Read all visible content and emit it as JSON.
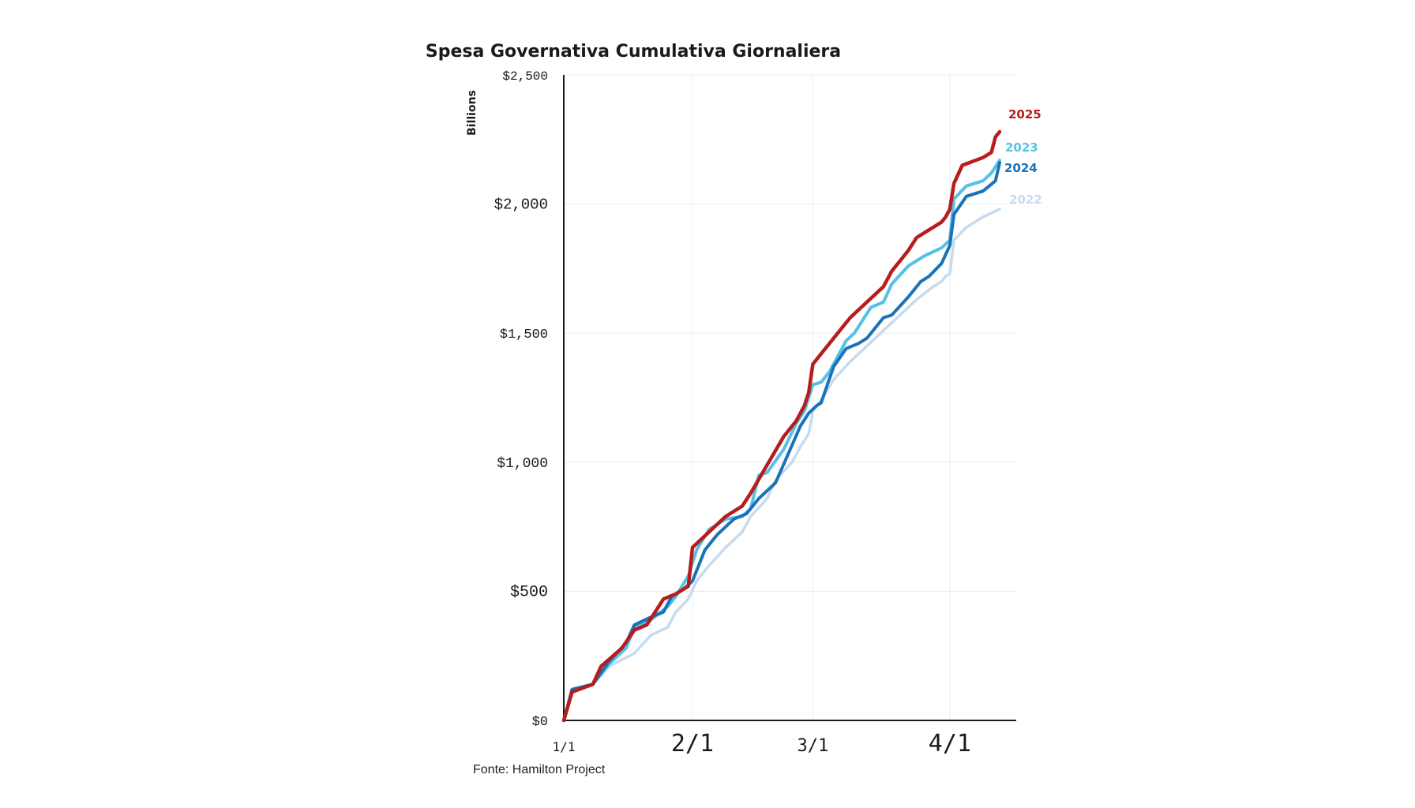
{
  "chart_data": {
    "type": "line",
    "title": "Spesa Governativa Cumulativa Giornaliera",
    "ylabel": "Billions",
    "xlabel": "",
    "source": "Fonte: Hamilton Project",
    "ylim": [
      0,
      2500
    ],
    "xlim": [
      1,
      110
    ],
    "grid": true,
    "legend": "right (end-of-line labels)",
    "yticks": [
      {
        "value": 0,
        "label": "$0"
      },
      {
        "value": 500,
        "label": "$500"
      },
      {
        "value": 1000,
        "label": "$1,000"
      },
      {
        "value": 1500,
        "label": "$1,500"
      },
      {
        "value": 2000,
        "label": "$2,000"
      },
      {
        "value": 2500,
        "label": "$2,500"
      }
    ],
    "xticks": [
      {
        "day": 1,
        "label": "1/1"
      },
      {
        "day": 32,
        "label": "2/1"
      },
      {
        "day": 61,
        "label": "3/1"
      },
      {
        "day": 94,
        "label": "4/1"
      }
    ],
    "series": [
      {
        "name": "2022",
        "label": "2022",
        "color": "#c6dbef",
        "x": [
          1,
          3,
          8,
          12,
          18,
          22,
          26,
          28,
          31,
          33,
          36,
          40,
          44,
          46,
          50,
          52,
          56,
          58,
          60,
          61,
          63,
          66,
          70,
          74,
          78,
          82,
          86,
          90,
          92,
          93,
          94,
          95,
          98,
          102,
          106
        ],
        "y": [
          0,
          110,
          140,
          210,
          260,
          330,
          360,
          420,
          470,
          540,
          600,
          670,
          730,
          790,
          860,
          930,
          1000,
          1060,
          1110,
          1200,
          1240,
          1320,
          1390,
          1450,
          1510,
          1570,
          1630,
          1680,
          1700,
          1720,
          1730,
          1860,
          1910,
          1950,
          1980
        ]
      },
      {
        "name": "2023",
        "label": "2023",
        "color": "#56c1e6",
        "x": [
          1,
          3,
          8,
          12,
          16,
          18,
          22,
          26,
          28,
          31,
          33,
          36,
          40,
          44,
          46,
          48,
          50,
          54,
          57,
          59,
          61,
          63,
          65,
          69,
          71,
          75,
          78,
          80,
          84,
          88,
          92,
          94,
          95,
          98,
          102,
          104,
          106
        ],
        "y": [
          0,
          120,
          140,
          220,
          280,
          360,
          390,
          440,
          480,
          560,
          660,
          740,
          780,
          790,
          820,
          950,
          960,
          1050,
          1150,
          1200,
          1300,
          1310,
          1350,
          1470,
          1500,
          1600,
          1620,
          1690,
          1760,
          1800,
          1830,
          1860,
          2020,
          2070,
          2090,
          2120,
          2170
        ]
      },
      {
        "name": "2024",
        "label": "2024",
        "color": "#1a72b8",
        "x": [
          1,
          3,
          8,
          12,
          16,
          18,
          22,
          25,
          27,
          30,
          32,
          35,
          38,
          42,
          45,
          48,
          52,
          55,
          58,
          60,
          62,
          63,
          66,
          69,
          72,
          74,
          78,
          80,
          84,
          87,
          89,
          92,
          94,
          95,
          98,
          102,
          105,
          106
        ],
        "y": [
          0,
          120,
          140,
          230,
          300,
          370,
          400,
          420,
          480,
          510,
          540,
          660,
          720,
          780,
          800,
          860,
          920,
          1030,
          1140,
          1190,
          1220,
          1230,
          1370,
          1440,
          1460,
          1480,
          1560,
          1570,
          1640,
          1700,
          1720,
          1770,
          1840,
          1960,
          2030,
          2050,
          2090,
          2160
        ]
      },
      {
        "name": "2025",
        "label": "2025",
        "color": "#b81c1c",
        "x": [
          1,
          3,
          8,
          10,
          15,
          18,
          21,
          23,
          25,
          28,
          31,
          32,
          36,
          40,
          44,
          46,
          50,
          54,
          57,
          59,
          60,
          61,
          63,
          66,
          70,
          74,
          78,
          80,
          82,
          84,
          86,
          89,
          92,
          93,
          94,
          95,
          97,
          102,
          104,
          105,
          106
        ],
        "y": [
          0,
          110,
          140,
          210,
          280,
          350,
          370,
          420,
          470,
          490,
          520,
          670,
          730,
          790,
          830,
          880,
          990,
          1100,
          1160,
          1220,
          1270,
          1380,
          1420,
          1480,
          1560,
          1620,
          1680,
          1740,
          1780,
          1820,
          1870,
          1900,
          1930,
          1950,
          1980,
          2080,
          2150,
          2180,
          2200,
          2260,
          2280
        ]
      }
    ]
  }
}
